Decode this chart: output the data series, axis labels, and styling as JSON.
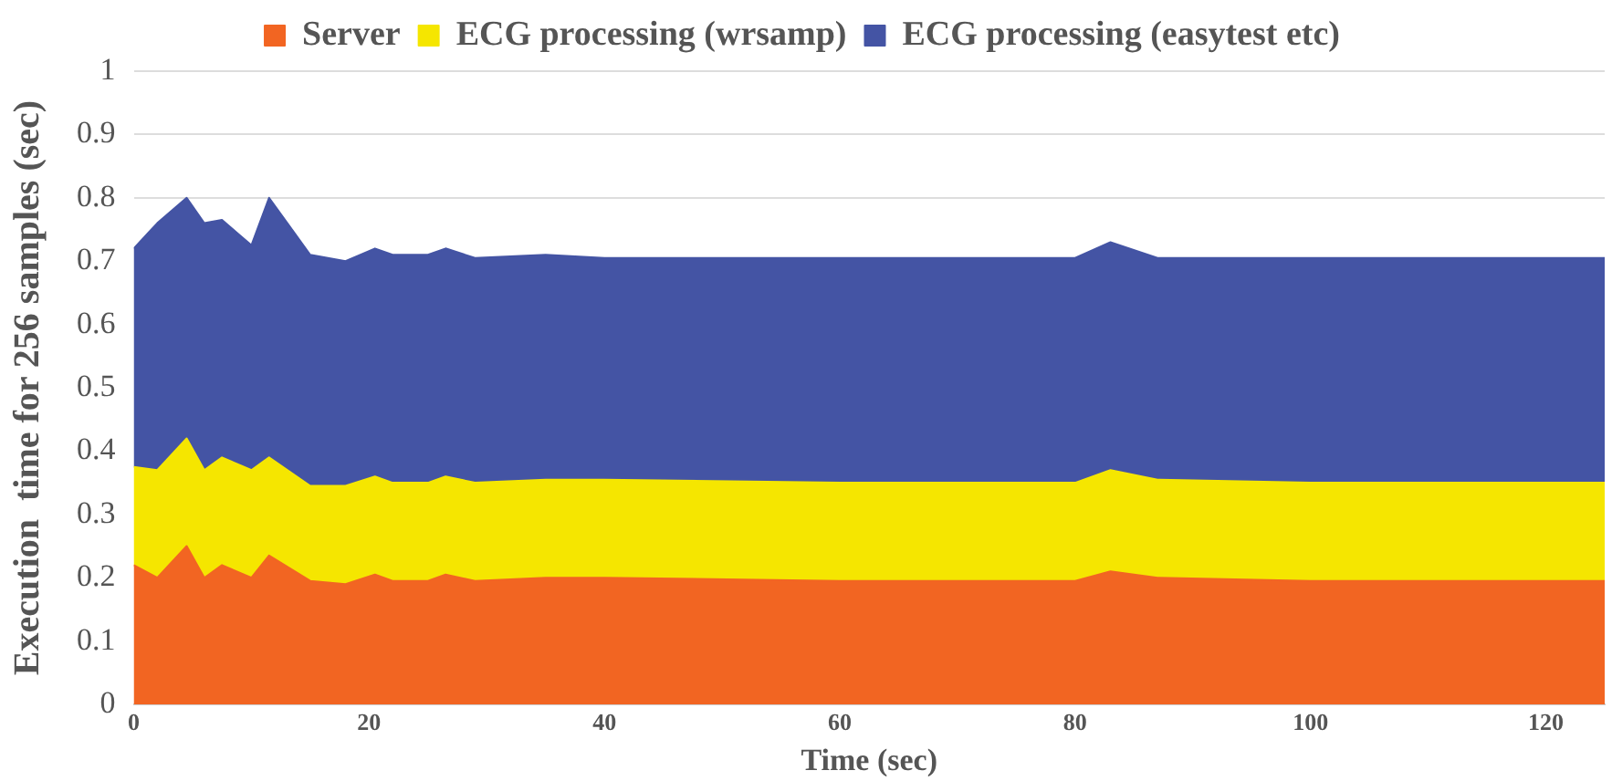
{
  "chart_data": {
    "type": "area",
    "stacked": true,
    "xlabel": "Time (sec)",
    "ylabel": "Execution  time for 256 samples (sec)",
    "x": [
      0,
      2,
      4.5,
      6,
      7.5,
      10,
      11.5,
      15,
      18,
      20.5,
      22,
      25,
      26.5,
      29,
      35,
      40,
      60,
      80,
      83,
      87,
      100,
      125
    ],
    "xlim": [
      0,
      125
    ],
    "xticks": [
      0,
      20,
      40,
      60,
      80,
      100,
      120
    ],
    "ylim": [
      0,
      1
    ],
    "yticks": [
      0,
      0.1,
      0.2,
      0.3,
      0.4,
      0.5,
      0.6,
      0.7,
      0.8,
      0.9,
      1
    ],
    "grid": "y",
    "legend": "top",
    "series": [
      {
        "name": "Server",
        "color": "#f26522",
        "values": [
          0.22,
          0.2,
          0.25,
          0.2,
          0.22,
          0.2,
          0.235,
          0.195,
          0.19,
          0.205,
          0.195,
          0.195,
          0.205,
          0.195,
          0.2,
          0.2,
          0.195,
          0.195,
          0.21,
          0.2,
          0.195,
          0.195
        ]
      },
      {
        "name": "ECG processing (wrsamp)",
        "color": "#f5e600",
        "values": [
          0.155,
          0.17,
          0.17,
          0.17,
          0.17,
          0.17,
          0.155,
          0.15,
          0.155,
          0.155,
          0.155,
          0.155,
          0.155,
          0.155,
          0.155,
          0.155,
          0.155,
          0.155,
          0.16,
          0.155,
          0.155,
          0.155
        ]
      },
      {
        "name": "ECG processing (easytest etc)",
        "color": "#4454a4",
        "values": [
          0.345,
          0.39,
          0.38,
          0.39,
          0.375,
          0.355,
          0.41,
          0.365,
          0.355,
          0.36,
          0.36,
          0.36,
          0.36,
          0.355,
          0.355,
          0.35,
          0.355,
          0.355,
          0.36,
          0.35,
          0.355,
          0.355
        ]
      }
    ]
  }
}
